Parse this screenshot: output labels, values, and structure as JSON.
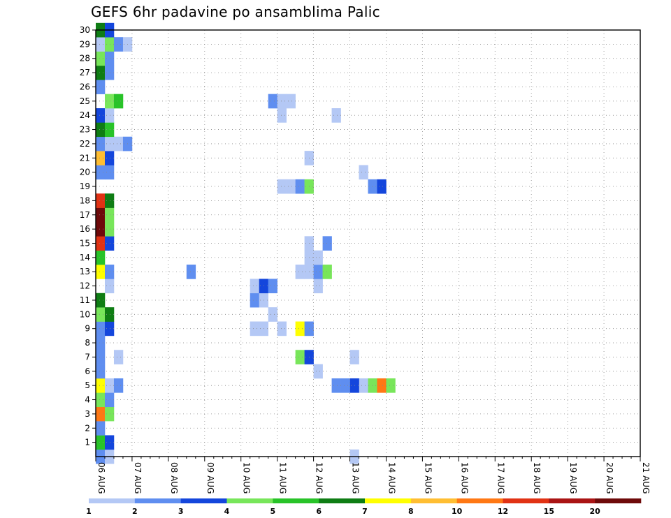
{
  "title": "GEFS 6hr padavine po ansamblima Palic",
  "chart_data": {
    "type": "heatmap",
    "title": "GEFS 6hr padavine po ansamblima Palic",
    "x_tick_labels": [
      "06 AUG",
      "07 AUG",
      "08 AUG",
      "09 AUG",
      "10 AUG",
      "11 AUG",
      "12 AUG",
      "13 AUG",
      "14 AUG",
      "15 AUG",
      "16 AUG",
      "17 AUG",
      "18 AUG",
      "19 AUG",
      "20 AUG",
      "21 AUG"
    ],
    "y_tick_labels": [
      "1",
      "2",
      "3",
      "4",
      "5",
      "6",
      "7",
      "8",
      "9",
      "10",
      "11",
      "12",
      "13",
      "14",
      "15",
      "16",
      "17",
      "18",
      "19",
      "20",
      "21",
      "22",
      "23",
      "24",
      "25",
      "26",
      "27",
      "28",
      "29",
      "30"
    ],
    "x_step": "6hr",
    "ensemble_range": [
      0,
      30
    ],
    "grid": true,
    "colorbar": {
      "levels": [
        "1",
        "2",
        "3",
        "4",
        "5",
        "6",
        "7",
        "8",
        "10",
        "12",
        "15",
        "20"
      ],
      "colors": [
        "#b4c8f5",
        "#5f8ef0",
        "#1446dc",
        "#78e65a",
        "#28c328",
        "#0f7d14",
        "#ffff00",
        "#ffbe32",
        "#ff7814",
        "#e13214",
        "#aa1414",
        "#6e0a0a"
      ]
    },
    "cells": [
      {
        "m": 0,
        "t": 0,
        "v": 2
      },
      {
        "m": 0,
        "t": 1,
        "v": 1
      },
      {
        "m": 0,
        "t": 28,
        "v": 1
      },
      {
        "m": 1,
        "t": 0,
        "v": 5
      },
      {
        "m": 1,
        "t": 1,
        "v": 3
      },
      {
        "m": 2,
        "t": 0,
        "v": 2
      },
      {
        "m": 3,
        "t": 0,
        "v": 9
      },
      {
        "m": 3,
        "t": 1,
        "v": 4
      },
      {
        "m": 4,
        "t": 0,
        "v": 4
      },
      {
        "m": 4,
        "t": 1,
        "v": 2
      },
      {
        "m": 5,
        "t": 0,
        "v": 7
      },
      {
        "m": 5,
        "t": 1,
        "v": 1
      },
      {
        "m": 5,
        "t": 2,
        "v": 2
      },
      {
        "m": 5,
        "t": 29,
        "v": 1
      },
      {
        "m": 5,
        "t": 28,
        "v": 3
      },
      {
        "m": 5,
        "t": 27,
        "v": 2
      },
      {
        "m": 5,
        "t": 26,
        "v": 2
      },
      {
        "m": 5,
        "t": 30,
        "v": 4
      },
      {
        "m": 5,
        "t": 31,
        "v": 9
      },
      {
        "m": 5,
        "t": 32,
        "v": 4
      },
      {
        "m": 6,
        "t": 0,
        "v": 2
      },
      {
        "m": 6,
        "t": 24,
        "v": 1
      },
      {
        "m": 7,
        "t": 0,
        "v": 2
      },
      {
        "m": 7,
        "t": 2,
        "v": 1
      },
      {
        "m": 7,
        "t": 22,
        "v": 4
      },
      {
        "m": 7,
        "t": 23,
        "v": 3
      },
      {
        "m": 7,
        "t": 28,
        "v": 1
      },
      {
        "m": 8,
        "t": 0,
        "v": 2
      },
      {
        "m": 9,
        "t": 0,
        "v": 2
      },
      {
        "m": 9,
        "t": 1,
        "v": 3
      },
      {
        "m": 9,
        "t": 17,
        "v": 1
      },
      {
        "m": 9,
        "t": 18,
        "v": 1
      },
      {
        "m": 9,
        "t": 20,
        "v": 1
      },
      {
        "m": 9,
        "t": 22,
        "v": 7
      },
      {
        "m": 9,
        "t": 23,
        "v": 2
      },
      {
        "m": 10,
        "t": 0,
        "v": 4
      },
      {
        "m": 10,
        "t": 1,
        "v": 6
      },
      {
        "m": 10,
        "t": 19,
        "v": 1
      },
      {
        "m": 11,
        "t": 0,
        "v": 6
      },
      {
        "m": 11,
        "t": 17,
        "v": 2
      },
      {
        "m": 11,
        "t": 18,
        "v": 1
      },
      {
        "m": 12,
        "t": 1,
        "v": 1
      },
      {
        "m": 12,
        "t": 17,
        "v": 1
      },
      {
        "m": 12,
        "t": 18,
        "v": 3
      },
      {
        "m": 12,
        "t": 19,
        "v": 2
      },
      {
        "m": 12,
        "t": 24,
        "v": 1
      },
      {
        "m": 13,
        "t": 0,
        "v": 7
      },
      {
        "m": 13,
        "t": 1,
        "v": 2
      },
      {
        "m": 13,
        "t": 10,
        "v": 2
      },
      {
        "m": 13,
        "t": 22,
        "v": 1
      },
      {
        "m": 13,
        "t": 23,
        "v": 1
      },
      {
        "m": 13,
        "t": 24,
        "v": 2
      },
      {
        "m": 13,
        "t": 25,
        "v": 4
      },
      {
        "m": 14,
        "t": 0,
        "v": 5
      },
      {
        "m": 14,
        "t": 23,
        "v": 1
      },
      {
        "m": 14,
        "t": 24,
        "v": 1
      },
      {
        "m": 15,
        "t": 0,
        "v": 10
      },
      {
        "m": 15,
        "t": 1,
        "v": 3
      },
      {
        "m": 15,
        "t": 23,
        "v": 1
      },
      {
        "m": 15,
        "t": 25,
        "v": 2
      },
      {
        "m": 16,
        "t": 0,
        "v": 12
      },
      {
        "m": 16,
        "t": 1,
        "v": 4
      },
      {
        "m": 17,
        "t": 0,
        "v": 12
      },
      {
        "m": 17,
        "t": 1,
        "v": 4
      },
      {
        "m": 18,
        "t": 0,
        "v": 10
      },
      {
        "m": 18,
        "t": 1,
        "v": 6
      },
      {
        "m": 19,
        "t": 20,
        "v": 1
      },
      {
        "m": 19,
        "t": 21,
        "v": 1
      },
      {
        "m": 19,
        "t": 22,
        "v": 2
      },
      {
        "m": 19,
        "t": 23,
        "v": 4
      },
      {
        "m": 19,
        "t": 30,
        "v": 2
      },
      {
        "m": 19,
        "t": 31,
        "v": 3
      },
      {
        "m": 20,
        "t": 0,
        "v": 2
      },
      {
        "m": 20,
        "t": 1,
        "v": 2
      },
      {
        "m": 20,
        "t": 29,
        "v": 1
      },
      {
        "m": 21,
        "t": 0,
        "v": 8
      },
      {
        "m": 21,
        "t": 1,
        "v": 3
      },
      {
        "m": 21,
        "t": 23,
        "v": 1
      },
      {
        "m": 22,
        "t": 0,
        "v": 2
      },
      {
        "m": 22,
        "t": 1,
        "v": 1
      },
      {
        "m": 22,
        "t": 2,
        "v": 1
      },
      {
        "m": 22,
        "t": 3,
        "v": 2
      },
      {
        "m": 23,
        "t": 0,
        "v": 6
      },
      {
        "m": 23,
        "t": 1,
        "v": 5
      },
      {
        "m": 24,
        "t": 0,
        "v": 3
      },
      {
        "m": 24,
        "t": 1,
        "v": 1
      },
      {
        "m": 24,
        "t": 20,
        "v": 1
      },
      {
        "m": 24,
        "t": 26,
        "v": 1
      },
      {
        "m": 25,
        "t": 1,
        "v": 4
      },
      {
        "m": 25,
        "t": 2,
        "v": 5
      },
      {
        "m": 25,
        "t": 19,
        "v": 2
      },
      {
        "m": 25,
        "t": 20,
        "v": 1
      },
      {
        "m": 25,
        "t": 21,
        "v": 1
      },
      {
        "m": 26,
        "t": 0,
        "v": 2
      },
      {
        "m": 27,
        "t": 0,
        "v": 6
      },
      {
        "m": 27,
        "t": 1,
        "v": 2
      },
      {
        "m": 28,
        "t": 0,
        "v": 4
      },
      {
        "m": 28,
        "t": 1,
        "v": 2
      },
      {
        "m": 29,
        "t": 0,
        "v": 1
      },
      {
        "m": 29,
        "t": 1,
        "v": 4
      },
      {
        "m": 29,
        "t": 2,
        "v": 2
      },
      {
        "m": 29,
        "t": 3,
        "v": 1
      },
      {
        "m": 30,
        "t": 0,
        "v": 6
      },
      {
        "m": 30,
        "t": 1,
        "v": 3
      }
    ]
  }
}
